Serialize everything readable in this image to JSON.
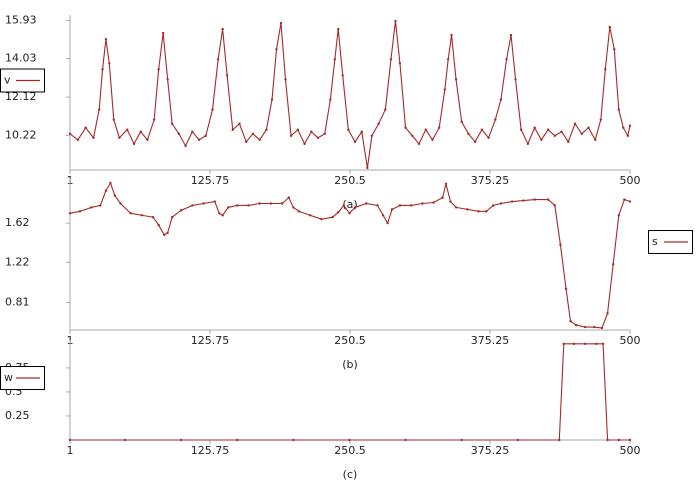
{
  "chart_data": [
    {
      "type": "line",
      "xlabel": "(a)",
      "legend": "left",
      "x": [
        1,
        8,
        15,
        22,
        27,
        30,
        33,
        36,
        40,
        45,
        52,
        58,
        64,
        70,
        76,
        80,
        84,
        88,
        92,
        98,
        104,
        110,
        116,
        122,
        128,
        133,
        137,
        141,
        146,
        152,
        158,
        164,
        170,
        176,
        181,
        185,
        189,
        193,
        198,
        204,
        210,
        216,
        222,
        228,
        233,
        237,
        240,
        244,
        249,
        255,
        261,
        266,
        270,
        276,
        282,
        287,
        291,
        295,
        300,
        306,
        312,
        318,
        324,
        330,
        335,
        338,
        341,
        345,
        350,
        356,
        362,
        368,
        374,
        380,
        385,
        390,
        394,
        398,
        403,
        409,
        415,
        421,
        427,
        433,
        439,
        445,
        451,
        457,
        463,
        469,
        474,
        478,
        482,
        486,
        490,
        494,
        498,
        500
      ],
      "series": [
        {
          "name": "v",
          "color": "#a52a2a",
          "values": [
            10.3,
            10.0,
            10.6,
            10.1,
            11.5,
            13.5,
            15.0,
            13.8,
            11.0,
            10.1,
            10.5,
            9.8,
            10.4,
            10.0,
            11.0,
            13.5,
            15.3,
            13.0,
            10.8,
            10.3,
            9.7,
            10.4,
            10.0,
            10.2,
            11.5,
            14.0,
            15.5,
            13.2,
            10.5,
            10.8,
            9.9,
            10.3,
            10.0,
            10.5,
            12.0,
            14.5,
            15.8,
            13.0,
            10.2,
            10.5,
            9.8,
            10.4,
            10.1,
            10.3,
            12.0,
            14.0,
            15.5,
            13.2,
            10.5,
            9.9,
            10.4,
            8.6,
            10.2,
            10.8,
            11.5,
            14.0,
            15.9,
            13.8,
            10.6,
            10.2,
            9.8,
            10.5,
            10.0,
            10.6,
            12.5,
            14.0,
            15.2,
            13.0,
            10.9,
            10.3,
            9.9,
            10.5,
            10.1,
            11.0,
            12.0,
            14.0,
            15.2,
            13.0,
            10.5,
            9.8,
            10.6,
            10.0,
            10.5,
            10.2,
            10.4,
            9.9,
            10.8,
            10.3,
            10.6,
            10.0,
            11.0,
            13.5,
            15.6,
            14.5,
            11.5,
            10.6,
            10.2,
            10.7
          ]
        }
      ],
      "xlim": [
        1,
        500
      ],
      "xticks": [
        1,
        125.75,
        250.5,
        375.25,
        500
      ],
      "ylim": [
        8.5,
        16.2
      ],
      "yticks": [
        10.22,
        12.12,
        14.03,
        15.93
      ]
    },
    {
      "type": "line",
      "xlabel": "(b)",
      "legend": "right",
      "x": [
        1,
        10,
        20,
        28,
        33,
        37,
        41,
        46,
        55,
        65,
        75,
        80,
        85,
        88,
        92,
        100,
        110,
        120,
        130,
        134,
        137,
        142,
        150,
        160,
        170,
        180,
        190,
        196,
        200,
        205,
        215,
        225,
        235,
        240,
        245,
        250,
        255,
        265,
        275,
        280,
        284,
        288,
        295,
        305,
        315,
        325,
        333,
        336,
        340,
        345,
        355,
        365,
        372,
        378,
        385,
        395,
        405,
        415,
        427,
        433,
        438,
        443,
        447,
        452,
        460,
        468,
        475,
        480,
        485,
        490,
        495,
        500
      ],
      "series": [
        {
          "name": "s",
          "color": "#a52a2a",
          "values": [
            1.72,
            1.74,
            1.78,
            1.8,
            1.95,
            2.03,
            1.9,
            1.82,
            1.72,
            1.7,
            1.68,
            1.6,
            1.5,
            1.52,
            1.68,
            1.75,
            1.8,
            1.82,
            1.84,
            1.72,
            1.7,
            1.78,
            1.8,
            1.8,
            1.82,
            1.82,
            1.82,
            1.88,
            1.78,
            1.74,
            1.7,
            1.66,
            1.68,
            1.73,
            1.8,
            1.72,
            1.78,
            1.82,
            1.8,
            1.7,
            1.62,
            1.76,
            1.8,
            1.8,
            1.82,
            1.83,
            1.88,
            2.02,
            1.84,
            1.78,
            1.76,
            1.74,
            1.74,
            1.8,
            1.82,
            1.84,
            1.85,
            1.86,
            1.86,
            1.8,
            1.4,
            0.95,
            0.62,
            0.58,
            0.56,
            0.56,
            0.55,
            0.7,
            1.2,
            1.7,
            1.86,
            1.84
          ]
        }
      ],
      "xlim": [
        1,
        500
      ],
      "xticks": [
        1,
        125.75,
        250.5,
        375.25,
        500
      ],
      "ylim": [
        0.53,
        2.08
      ],
      "yticks": [
        0.81,
        1.22,
        1.62
      ]
    },
    {
      "type": "line",
      "xlabel": "(c)",
      "legend": "left",
      "x": [
        1,
        50,
        100,
        150,
        200,
        250,
        300,
        350,
        400,
        437,
        441,
        450,
        460,
        470,
        476,
        480,
        490,
        500
      ],
      "series": [
        {
          "name": "w",
          "color": "#a52a2a",
          "values": [
            0,
            0,
            0,
            0,
            0,
            0,
            0,
            0,
            0,
            0,
            1,
            1,
            1,
            1,
            1,
            0,
            0,
            0
          ]
        }
      ],
      "xlim": [
        1,
        500
      ],
      "xticks": [
        1,
        125.75,
        250.5,
        375.25,
        500
      ],
      "ylim": [
        0,
        1.04
      ],
      "yticks": [
        0.25,
        0.5,
        0.75
      ]
    }
  ]
}
